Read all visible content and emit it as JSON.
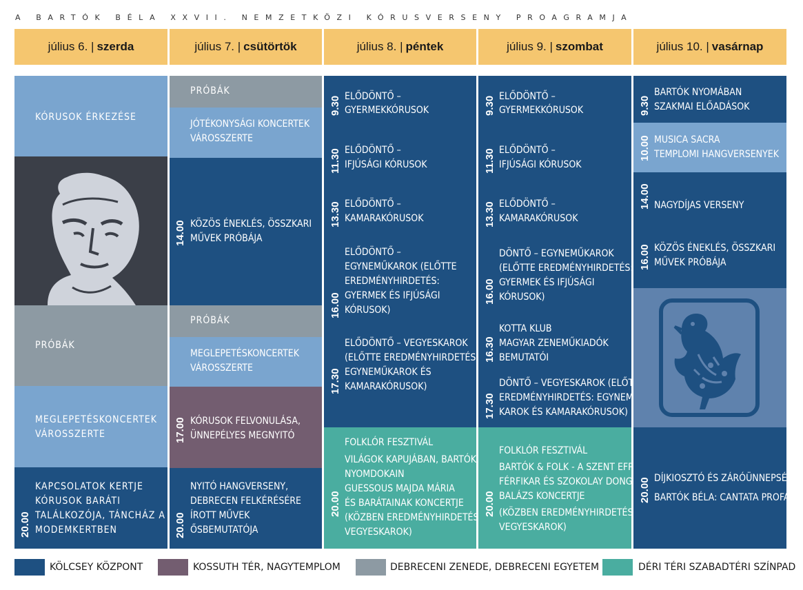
{
  "title": "A BARTÓK BÉLA XXVII. NEMZETKÖZI KÓRUSVERSENY PROAGRAMJA",
  "days": [
    {
      "date": "július 6. |",
      "weekday": "szerda"
    },
    {
      "date": "július 7. |",
      "weekday": "csütörtök"
    },
    {
      "date": "július 8. |",
      "weekday": "péntek"
    },
    {
      "date": "július 9. |",
      "weekday": "szombat"
    },
    {
      "date": "július 10. |",
      "weekday": "vasárnap"
    }
  ],
  "col1": {
    "arrival": "KÓRUSOK ÉRKEZÉSE",
    "rehearsals": "PRÓBÁK",
    "surprise": [
      "MEGLEPETÉSKONCERTEK",
      "VÁROSSZERTE"
    ],
    "evening_time": "20.00",
    "evening": [
      "KAPCSOLATOK KERTJE",
      "KÓRUSOK BARÁTI",
      "TALÁLKOZÓJA, TÁNCHÁZ A",
      "MODEMKERTBEN"
    ]
  },
  "col2": {
    "rehearsals1": "PRÓBÁK",
    "charity": [
      "JÓTÉKONYSÁGI KONCERTEK",
      "VÁROSSZERTE"
    ],
    "t1400": "14.00",
    "singing": [
      "KÖZÖS ÉNEKLÉS, ÖSSZKARI",
      "MŰVEK PRÓBÁJA"
    ],
    "rehearsals2": "PRÓBÁK",
    "surprise": [
      "MEGLEPETÉSKONCERTEK",
      "VÁROSSZERTE"
    ],
    "t1700": "17.00",
    "parade": [
      "KÓRUSOK FELVONULÁSA,",
      "ÜNNEPÉLYES MEGNYITÓ"
    ],
    "t2000": "20.00",
    "opening": [
      "NYITÓ HANGVERSENY,",
      "DEBRECEN FELKÉRÉSÉRE",
      "ÍROTT MŰVEK",
      "ŐSBEMUTATÓJA"
    ]
  },
  "col3": {
    "t930": "9.30",
    "e930": [
      "ELŐDÖNTŐ –",
      "GYERMEKKÓRUSOK"
    ],
    "t1130": "11.30",
    "e1130": [
      "ELŐDÖNTŐ –",
      "IFJÚSÁGI KÓRUSOK"
    ],
    "t1330": "13.30",
    "e1330": [
      "ELŐDÖNTŐ –",
      "KAMARAKÓRUSOK"
    ],
    "t1600": "16.00",
    "e1600": [
      "ELŐDÖNTŐ –",
      "EGYNEMŰKAROK (ELŐTTE",
      "EREDMÉNYHIRDETÉS:",
      "GYERMEK ÉS IFJÚSÁGI",
      "KÓRUSOK)"
    ],
    "t1730": "17.30",
    "e1730": [
      "ELŐDÖNTŐ – VEGYESKAROK",
      "(ELŐTTE EREDMÉNYHIRDETÉS:",
      "EGYNEMŰKAROK ÉS",
      "KAMARAKÓRUSOK)"
    ],
    "t2000": "20.00",
    "folk": [
      "FOLKLÓR FESZTIVÁL",
      "VILÁGOK KAPUJÁBAN, BARTÓK",
      "NYOMDOKAIN",
      "GUESSOUS MAJDA MÁRIA",
      "ÉS BARÁTAINAK KONCERTJE",
      "(KÖZBEN EREDMÉNYHIRDETÉS:",
      "VEGYESKAROK)"
    ]
  },
  "col4": {
    "t930": "9.30",
    "e930": [
      "ELŐDÖNTŐ –",
      "GYERMEKKÓRUSOK"
    ],
    "t1130": "11.30",
    "e1130": [
      "ELŐDÖNTŐ –",
      "IFJÚSÁGI KÓRUSOK"
    ],
    "t1330": "13.30",
    "e1330": [
      "ELŐDÖNTŐ –",
      "KAMARAKÓRUSOK"
    ],
    "t1600": "16.00",
    "e1600": [
      "DÖNTŐ – EGYNEMŰKAROK",
      "(ELŐTTE EREDMÉNYHIRDETÉS:",
      "GYERMEK ÉS IFJÚSÁGI",
      "KÓRUSOK)"
    ],
    "t1630": "16.30",
    "e1630": [
      "KOTTA KLUB",
      "MAGYAR ZENEMŰKIADÓK",
      "BEMUTATÓI"
    ],
    "t1730": "17.30",
    "e1730": [
      "DÖNTŐ – VEGYESKAROK (ELŐTTE",
      "EREDMÉNYHIRDETÉS: EGYNEMŰ",
      "KAROK ÉS KAMARAKÓRUSOK)"
    ],
    "t2000": "20.00",
    "folk": [
      "FOLKLÓR FESZTIVÁL",
      "BARTÓK & FOLK - A SZENT EFRÉM",
      "FÉRFIKAR ÉS SZOKOLAY DONGÓ",
      "BALÁZS KONCERTJE",
      "(KÖZBEN EREDMÉNYHIRDETÉS:",
      "VEGYESKAROK)"
    ]
  },
  "col5": {
    "t930": "9.30",
    "e930": [
      "BARTÓK NYOMÁBAN",
      "SZAKMAI ELŐADÁSOK"
    ],
    "t1000": "10.00",
    "e1000": [
      "MUSICA SACRA",
      "TEMPLOMI HANGVERSENYEK"
    ],
    "t1400": "14.00",
    "e1400": [
      "NAGYDÍJAS VERSENY"
    ],
    "t1600": "16.00",
    "e1600": [
      "KÖZÖS ÉNEKLÉS, ÖSSZKARI",
      "MŰVEK PRÓBÁJA"
    ],
    "t2000": "20.00",
    "e2000": [
      "DÍJKIOSZTÓ ÉS ZÁRÓÜNNEPSÉG",
      "BARTÓK BÉLA: CANTATA PROFANA"
    ]
  },
  "legend": [
    {
      "label": "KÖLCSEY KÖZPONT",
      "color": "#1e5081"
    },
    {
      "label": "KOSSUTH TÉR, NAGYTEMPLOM",
      "color": "#735d70"
    },
    {
      "label": "DEBRECENI ZENEDE, DEBRECENI EGYETEM",
      "color": "#8d9aa3"
    },
    {
      "label": "DÉRI TÉRI SZABADTÉRI SZÍNPAD",
      "color": "#4aada0"
    }
  ],
  "images": {
    "portrait": "bartok-portrait-icon",
    "bird": "folk-bird-icon"
  }
}
